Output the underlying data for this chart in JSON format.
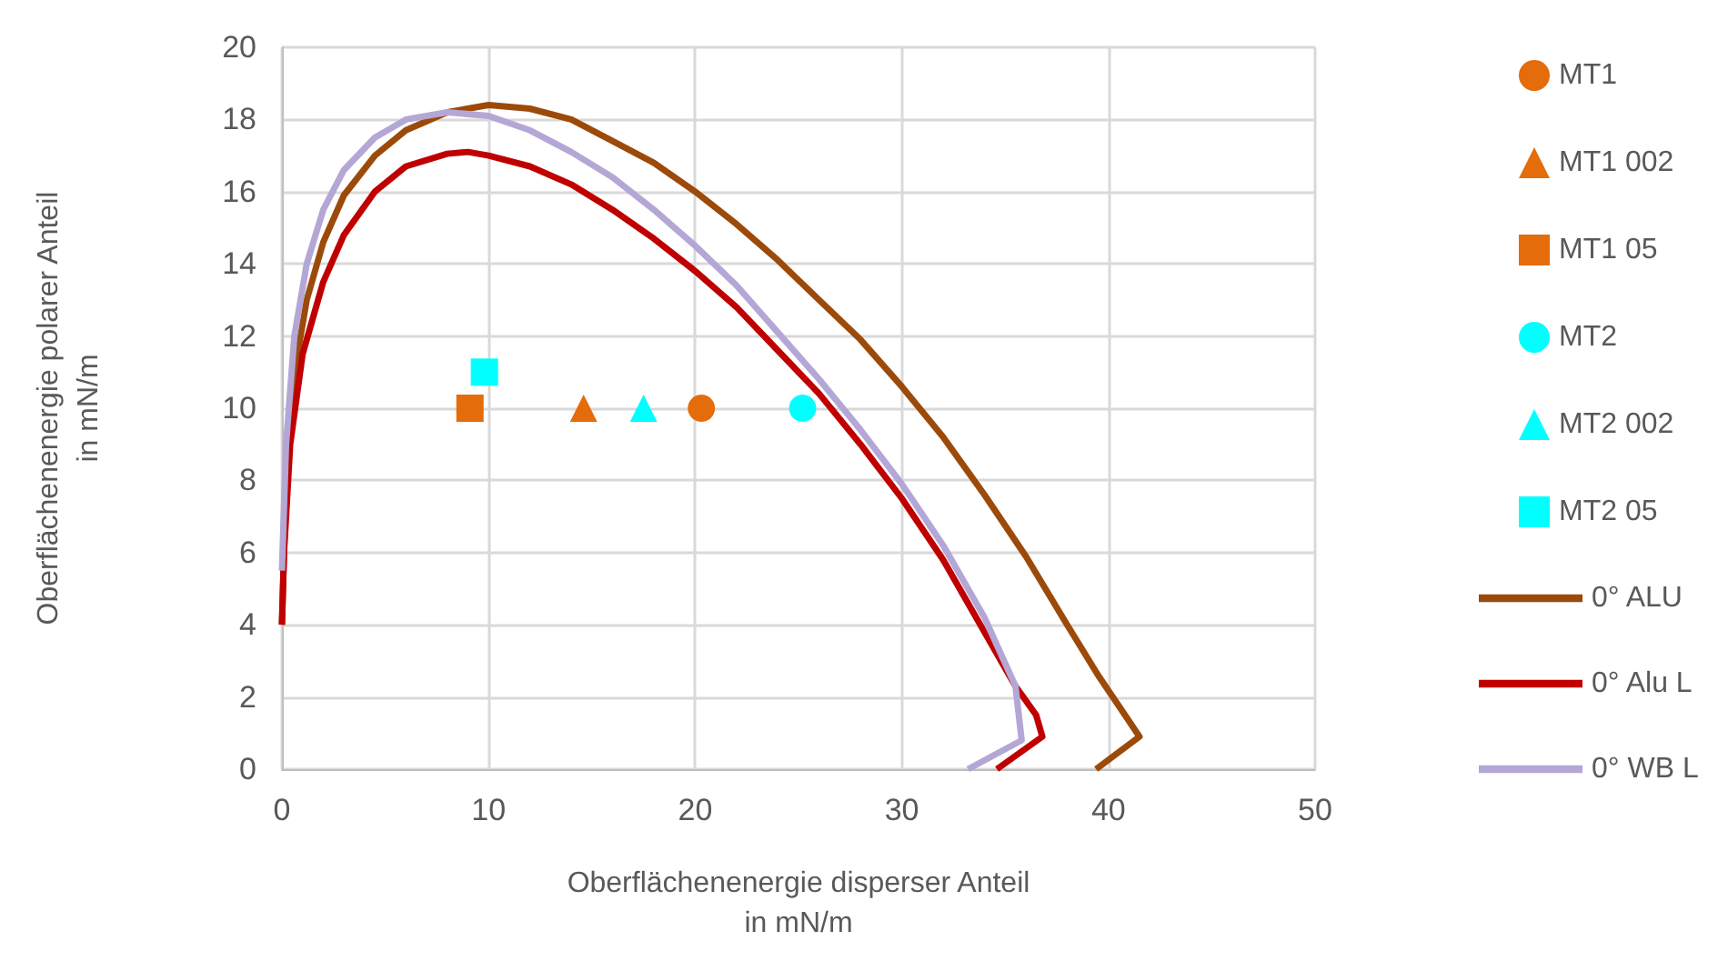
{
  "chart_data": {
    "type": "scatter",
    "xlabel": "Oberflächenenergie disperser Anteil\nin mN/m",
    "ylabel": "Oberflächenenergie polarer Anteil\nin mN/m",
    "xlim": [
      0,
      50
    ],
    "xticks": [
      0,
      10,
      20,
      30,
      40,
      50
    ],
    "ylim": [
      0,
      20
    ],
    "yticks": [
      0,
      2,
      4,
      6,
      8,
      10,
      12,
      14,
      16,
      18,
      20
    ],
    "grid": true,
    "legend": "right",
    "series": [
      {
        "name": "MT1",
        "color": "#e46c0a",
        "marker": "circle",
        "x": [
          20.3
        ],
        "values": [
          10
        ]
      },
      {
        "name": "MT1 002",
        "color": "#e46c0a",
        "marker": "triangle",
        "x": [
          14.6
        ],
        "values": [
          10
        ]
      },
      {
        "name": "MT1 05",
        "color": "#e46c0a",
        "marker": "square",
        "x": [
          9.1
        ],
        "values": [
          10
        ]
      },
      {
        "name": "MT2",
        "color": "#00ffff",
        "marker": "circle",
        "x": [
          25.2
        ],
        "values": [
          10
        ]
      },
      {
        "name": "MT2 002",
        "color": "#00ffff",
        "marker": "triangle",
        "x": [
          17.5
        ],
        "values": [
          10
        ]
      },
      {
        "name": "MT2 05",
        "color": "#00ffff",
        "marker": "square",
        "x": [
          9.8
        ],
        "values": [
          11
        ]
      },
      {
        "name": "0° ALU",
        "type": "line",
        "color": "#9c4a0a",
        "marker": "none",
        "x": [
          0,
          0.2,
          0.6,
          1.2,
          2,
          3,
          4.5,
          6,
          8,
          10,
          12,
          14,
          16,
          18,
          20,
          22,
          24,
          26,
          28,
          30,
          32,
          34,
          36,
          38,
          39.5,
          40.8,
          41.5,
          39.4
        ],
        "values": [
          4,
          8,
          11,
          13,
          14.6,
          15.9,
          17,
          17.7,
          18.2,
          18.4,
          18.3,
          18,
          17.4,
          16.8,
          16,
          15.1,
          14.1,
          13,
          11.9,
          10.6,
          9.2,
          7.6,
          5.9,
          4,
          2.6,
          1.5,
          0.9,
          0
        ]
      },
      {
        "name": "0° Alu L",
        "type": "line",
        "color": "#c00000",
        "marker": "none",
        "x": [
          0,
          0.1,
          0.4,
          1,
          2,
          3,
          4.5,
          6,
          8,
          9,
          10,
          12,
          14,
          16,
          18,
          20,
          22,
          24,
          26,
          28,
          30,
          32,
          34,
          35.5,
          36.5,
          36.8,
          34.6
        ],
        "values": [
          4,
          6,
          9,
          11.5,
          13.5,
          14.8,
          16,
          16.7,
          17.05,
          17.1,
          17,
          16.7,
          16.2,
          15.5,
          14.7,
          13.8,
          12.8,
          11.6,
          10.4,
          9,
          7.5,
          5.8,
          3.8,
          2.3,
          1.5,
          0.9,
          0
        ]
      },
      {
        "name": "0° WB L",
        "type": "line",
        "color": "#b4a7d6",
        "marker": "none",
        "x": [
          0,
          0.2,
          0.6,
          1.2,
          2,
          3,
          4.5,
          6,
          8,
          10,
          12,
          14,
          16,
          18,
          20,
          22,
          24,
          26,
          28,
          30,
          32,
          34,
          35.5,
          35.8,
          33.2
        ],
        "values": [
          5.5,
          9,
          12,
          14,
          15.5,
          16.6,
          17.5,
          18,
          18.2,
          18.1,
          17.7,
          17.1,
          16.4,
          15.5,
          14.5,
          13.4,
          12.1,
          10.8,
          9.4,
          7.9,
          6.2,
          4.2,
          2.3,
          0.8,
          0
        ]
      }
    ]
  }
}
